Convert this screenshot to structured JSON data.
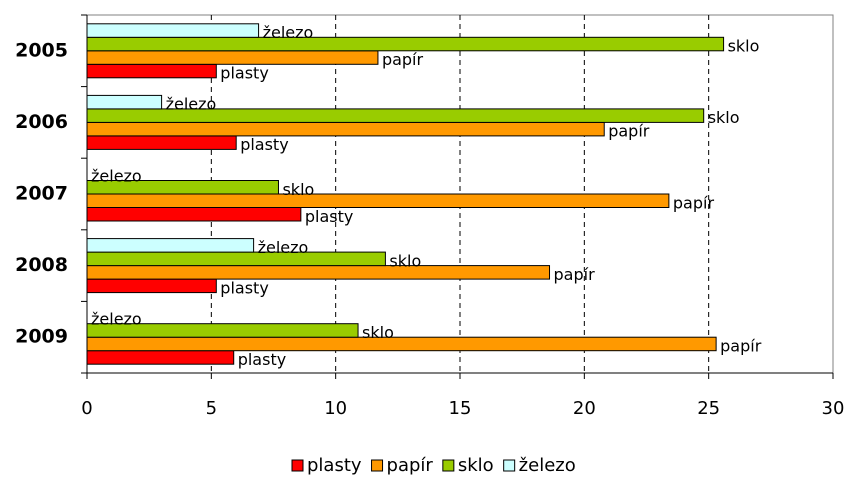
{
  "chart_data": {
    "type": "hbar",
    "categories": [
      "2005",
      "2006",
      "2007",
      "2008",
      "2009"
    ],
    "series": [
      {
        "name": "plasty",
        "color": "#ff0000",
        "values": [
          5.2,
          6.0,
          8.6,
          5.2,
          5.9
        ]
      },
      {
        "name": "papír",
        "color": "#ff9900",
        "values": [
          11.7,
          20.8,
          23.4,
          18.6,
          25.3
        ]
      },
      {
        "name": "sklo",
        "color": "#99cc00",
        "values": [
          25.6,
          24.8,
          7.7,
          12.0,
          10.9
        ]
      },
      {
        "name": "železo",
        "color": "#ccffff",
        "values": [
          6.9,
          3.0,
          0,
          6.7,
          0
        ]
      }
    ],
    "xlim": [
      0,
      30
    ],
    "xticks": [
      0,
      5,
      10,
      15,
      20,
      25,
      30
    ],
    "grid": true,
    "legend": "bottom"
  }
}
